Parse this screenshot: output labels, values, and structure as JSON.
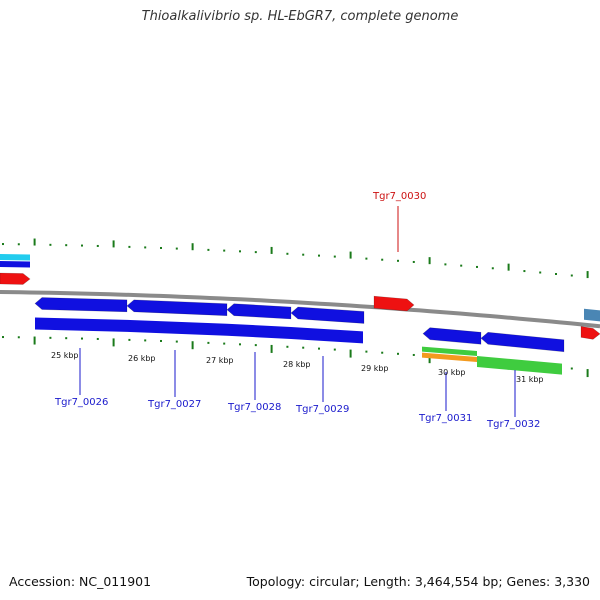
{
  "title": "Thioalkalivibrio sp. HL-EbGR7, complete genome",
  "footer": {
    "accession_label": "Accession: NC_011901",
    "summary": "Topology: circular; Length: 3,464,554 bp; Genes: 3,330"
  },
  "colors": {
    "backbone": "#8a8a8a",
    "tick": "#1a7a1a",
    "cds_blue": "#1010e0",
    "trna_red": "#ee1111",
    "rrna_orange": "#f39a1e",
    "rna_green": "#3fcc3f",
    "cyan": "#22ccee",
    "steel_blue": "#4a86b4",
    "label_blue": "#1a1acc",
    "label_red": "#cc1111"
  },
  "kbp_labels": [
    "25 kbp",
    "26 kbp",
    "27 kbp",
    "28 kbp",
    "29 kbp",
    "30 kbp",
    "31 kbp"
  ],
  "gene_labels": [
    {
      "text": "Tgr7_0026",
      "color": "label_blue"
    },
    {
      "text": "Tgr7_0027",
      "color": "label_blue"
    },
    {
      "text": "Tgr7_0028",
      "color": "label_blue"
    },
    {
      "text": "Tgr7_0029",
      "color": "label_blue"
    },
    {
      "text": "Tgr7_0030",
      "color": "label_red"
    },
    {
      "text": "Tgr7_0031",
      "color": "label_blue"
    },
    {
      "text": "Tgr7_0032",
      "color": "label_blue"
    }
  ]
}
